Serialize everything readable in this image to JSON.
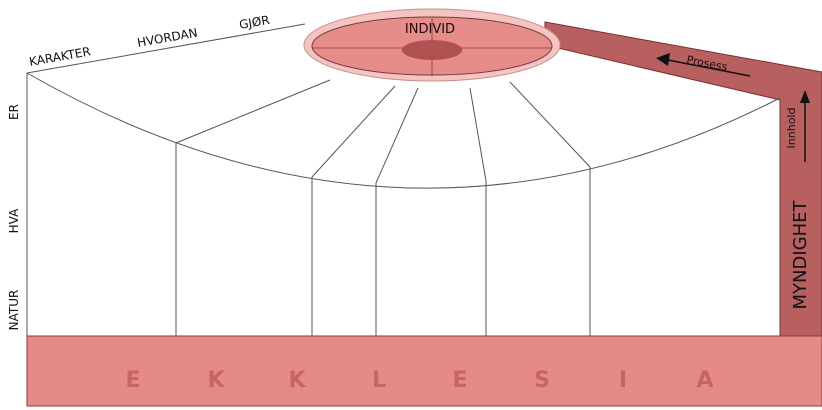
{
  "colors": {
    "base_fill": "#e68a87",
    "base_stroke": "#8a3a3a",
    "base_letters": "#c46663",
    "individ_outer": "#f4c4c2",
    "individ_inner": "#e68d8a",
    "individ_core": "#b05252",
    "band": "#b86060",
    "line": "#444444"
  },
  "top_labels": {
    "karakter": "KARAKTER",
    "hvordan": "HVORDAN",
    "gjor": "GJØR"
  },
  "side_labels": {
    "er": "ER",
    "hva": "HVA",
    "natur": "NATUR"
  },
  "individ": "INDIVID",
  "prosess": "Prosess",
  "innhold": "Innhold",
  "myndighet": "MYNDIGHET",
  "ekklesia_letters": [
    "E",
    "K",
    "K",
    "L",
    "E",
    "S",
    "I",
    "A"
  ]
}
